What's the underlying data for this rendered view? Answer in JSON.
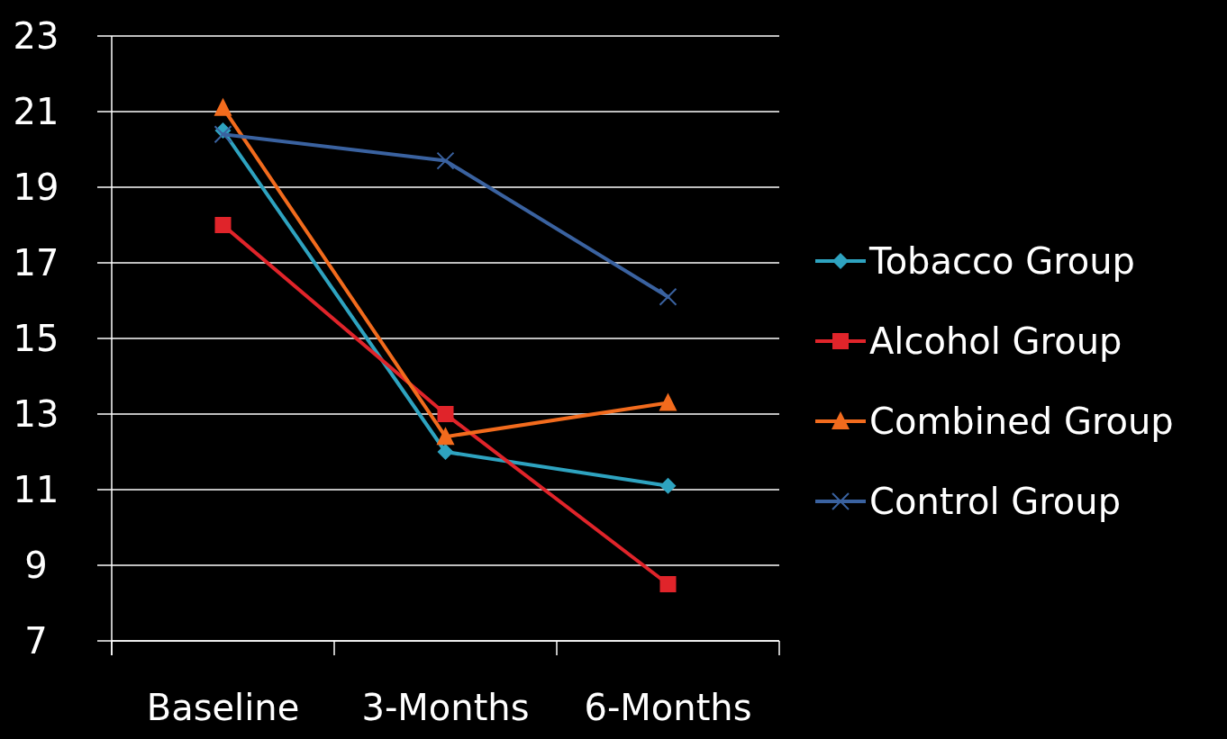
{
  "chart_data": {
    "type": "line",
    "categories": [
      "Baseline",
      "3-Months",
      "6-Months"
    ],
    "series": [
      {
        "name": "Tobacco Group",
        "color": "#2ea3c0",
        "marker": "diamond",
        "values": [
          20.5,
          12.0,
          11.1
        ]
      },
      {
        "name": "Alcohol Group",
        "color": "#e0242a",
        "marker": "square",
        "values": [
          18.0,
          13.0,
          8.5
        ]
      },
      {
        "name": "Combined Group",
        "color": "#f26b1d",
        "marker": "triangle",
        "values": [
          21.1,
          12.4,
          13.3
        ]
      },
      {
        "name": "Control Group",
        "color": "#3a62a0",
        "marker": "cross",
        "values": [
          20.4,
          19.7,
          16.1
        ]
      }
    ],
    "ylim": [
      7,
      23
    ],
    "yticks": [
      7,
      9,
      11,
      13,
      15,
      17,
      19,
      21,
      23
    ],
    "grid": "y",
    "legend": "right"
  }
}
